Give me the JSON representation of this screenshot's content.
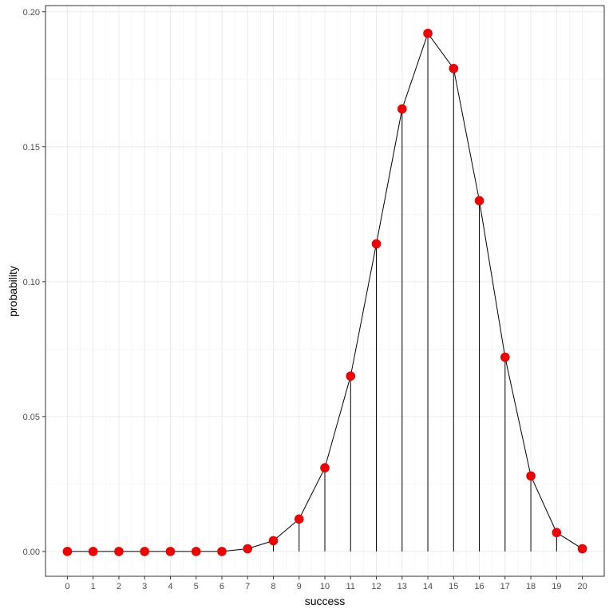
{
  "chart_data": {
    "type": "scatter",
    "xlabel": "success",
    "ylabel": "probability",
    "x": [
      0,
      1,
      2,
      3,
      4,
      5,
      6,
      7,
      8,
      9,
      10,
      11,
      12,
      13,
      14,
      15,
      16,
      17,
      18,
      19,
      20
    ],
    "y": [
      0.0,
      0.0,
      0.0,
      0.0,
      0.0,
      0.0,
      0.0,
      0.001,
      0.004,
      0.012,
      0.031,
      0.065,
      0.114,
      0.164,
      0.192,
      0.179,
      0.13,
      0.072,
      0.028,
      0.007,
      0.001
    ],
    "x_ticks": [
      "0",
      "1",
      "2",
      "3",
      "4",
      "5",
      "6",
      "7",
      "8",
      "9",
      "10",
      "11",
      "12",
      "13",
      "14",
      "15",
      "16",
      "17",
      "18",
      "19",
      "20"
    ],
    "y_ticks": [
      {
        "value": 0.0,
        "label": "0.00"
      },
      {
        "value": 0.05,
        "label": "0.05"
      },
      {
        "value": 0.1,
        "label": "0.10"
      },
      {
        "value": 0.15,
        "label": "0.15"
      },
      {
        "value": 0.2,
        "label": "0.20"
      }
    ],
    "xlim": [
      -0.85,
      20.85
    ],
    "ylim": [
      -0.0092,
      0.2023
    ],
    "grid": true,
    "point_color": "#ee0000",
    "line_color": "#000000",
    "stem_color": "#000000"
  }
}
